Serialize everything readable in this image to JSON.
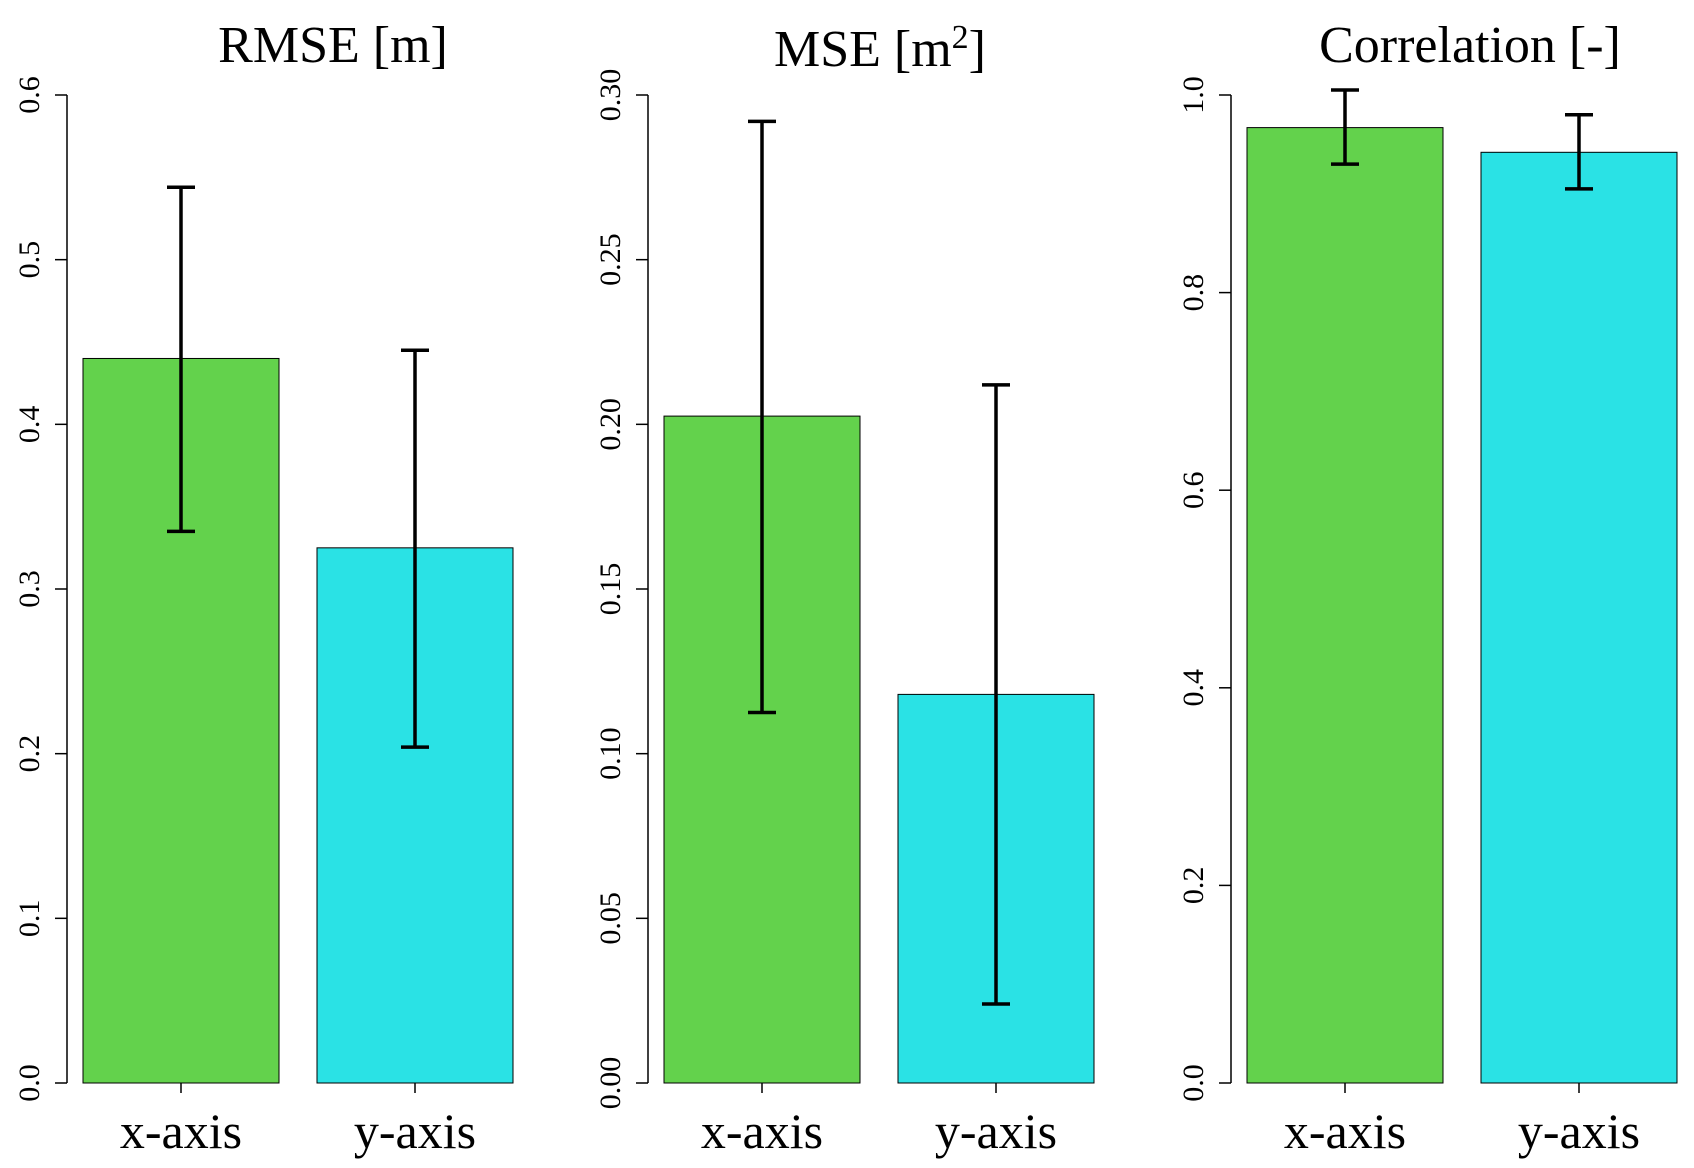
{
  "chart_data": [
    {
      "type": "bar",
      "title": "RMSE [m]",
      "title_unit_superscript": "",
      "categories": [
        "x-axis",
        "y-axis"
      ],
      "values": [
        0.44,
        0.325
      ],
      "error_low": [
        0.335,
        0.204
      ],
      "error_high": [
        0.544,
        0.445
      ],
      "colors": [
        "#63d24c",
        "#2ae2e5"
      ],
      "ylim": [
        0,
        0.6
      ],
      "yticks": [
        0.0,
        0.1,
        0.2,
        0.3,
        0.4,
        0.5,
        0.6
      ],
      "ytick_labels": [
        "0.0",
        "0.1",
        "0.2",
        "0.3",
        "0.4",
        "0.5",
        "0.6"
      ],
      "xlabel": "",
      "ylabel": "",
      "grid": false,
      "legend": false
    },
    {
      "type": "bar",
      "title": "MSE [m",
      "title_unit_superscript": "2",
      "title_suffix": "]",
      "categories": [
        "x-axis",
        "y-axis"
      ],
      "values": [
        0.2025,
        0.118
      ],
      "error_low": [
        0.1125,
        0.024
      ],
      "error_high": [
        0.292,
        0.212
      ],
      "colors": [
        "#63d24c",
        "#2ae2e5"
      ],
      "ylim": [
        0,
        0.3
      ],
      "yticks": [
        0.0,
        0.05,
        0.1,
        0.15,
        0.2,
        0.25,
        0.3
      ],
      "ytick_labels": [
        "0.00",
        "0.05",
        "0.10",
        "0.15",
        "0.20",
        "0.25",
        "0.30"
      ],
      "xlabel": "",
      "ylabel": "",
      "grid": false,
      "legend": false
    },
    {
      "type": "bar",
      "title": "Correlation [-]",
      "title_unit_superscript": "",
      "categories": [
        "x-axis",
        "y-axis"
      ],
      "values": [
        0.967,
        0.942
      ],
      "error_low": [
        0.93,
        0.905
      ],
      "error_high": [
        1.005,
        0.98
      ],
      "colors": [
        "#63d24c",
        "#2ae2e5"
      ],
      "ylim": [
        0,
        1.0
      ],
      "yticks": [
        0.0,
        0.2,
        0.4,
        0.6,
        0.8,
        1.0
      ],
      "ytick_labels": [
        "0.0",
        "0.2",
        "0.4",
        "0.6",
        "0.8",
        "1.0"
      ],
      "xlabel": "",
      "ylabel": "",
      "grid": false,
      "legend": false
    }
  ]
}
